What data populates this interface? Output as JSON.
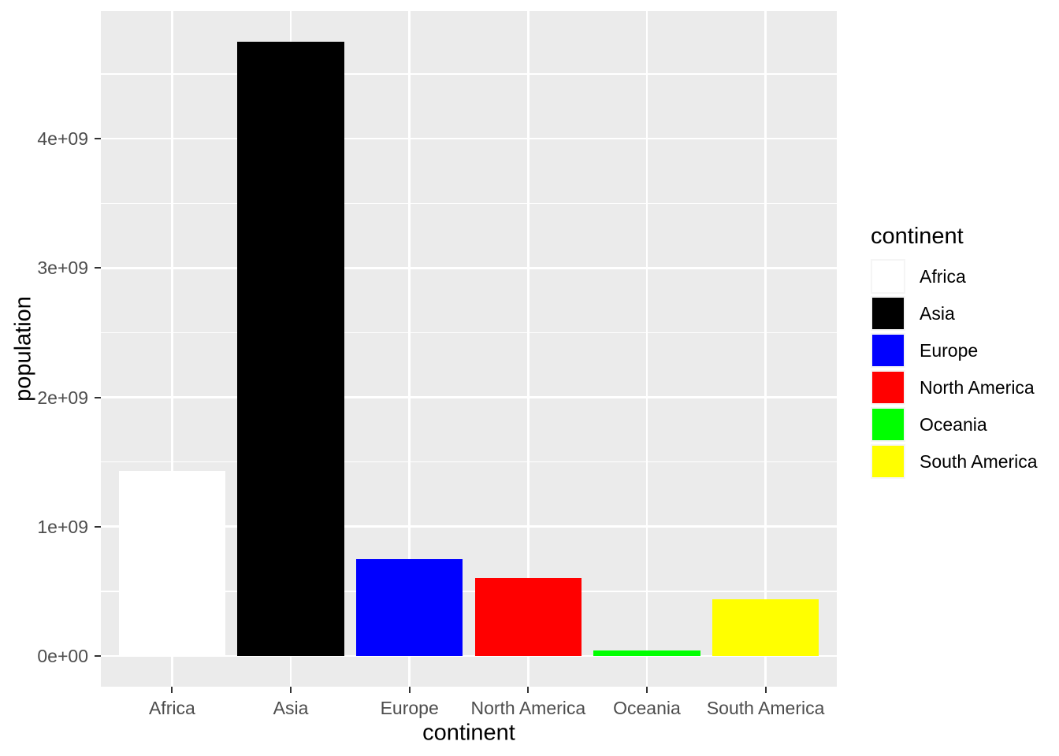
{
  "chart_data": {
    "type": "bar",
    "title": "",
    "xlabel": "continent",
    "ylabel": "population",
    "categories": [
      "Africa",
      "Asia",
      "Europe",
      "North America",
      "Oceania",
      "South America"
    ],
    "values": [
      1430000000,
      4750000000,
      750000000,
      600000000,
      43000000,
      440000000
    ],
    "bar_colors": [
      "#FFFFFF",
      "#000000",
      "#0000FF",
      "#FF0000",
      "#00FF00",
      "#FFFF00"
    ],
    "ylim": [
      0,
      4750000000
    ],
    "grid": true,
    "y_ticks": [
      {
        "value": 0,
        "label": "0e+00"
      },
      {
        "value": 1000000000,
        "label": "1e+09"
      },
      {
        "value": 2000000000,
        "label": "2e+09"
      },
      {
        "value": 3000000000,
        "label": "3e+09"
      },
      {
        "value": 4000000000,
        "label": "4e+09"
      }
    ],
    "y_minor_ticks": [
      500000000,
      1500000000,
      2500000000,
      3500000000,
      4500000000
    ],
    "legend": {
      "title": "continent",
      "position": "right",
      "entries": [
        {
          "label": "Africa",
          "color": "#FFFFFF"
        },
        {
          "label": "Asia",
          "color": "#000000"
        },
        {
          "label": "Europe",
          "color": "#0000FF"
        },
        {
          "label": "North America",
          "color": "#FF0000"
        },
        {
          "label": "Oceania",
          "color": "#00FF00"
        },
        {
          "label": "South America",
          "color": "#FFFF00"
        }
      ]
    }
  },
  "style": {
    "background": "#FFFFFF",
    "panel_bg": "#EBEBEB",
    "grid_color": "#FFFFFF",
    "axis_text_color": "#4D4D4D",
    "axis_title_color": "#000000",
    "tick_mark_color": "#333333",
    "legend_key_bg": "#F5F5F5"
  }
}
